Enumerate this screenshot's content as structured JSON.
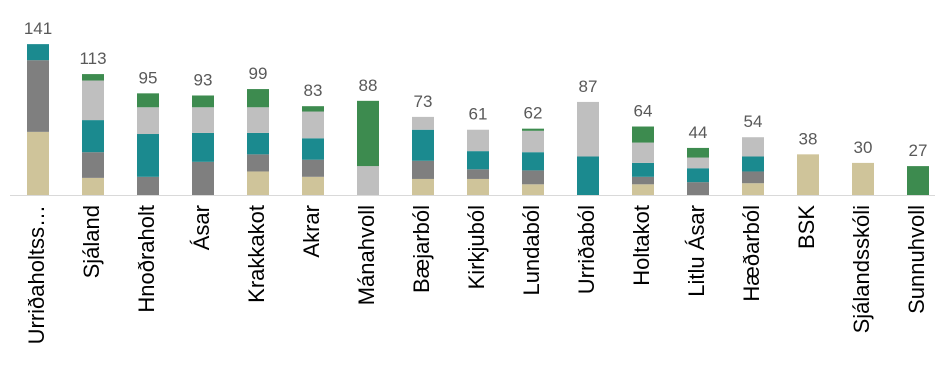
{
  "chart_data": {
    "type": "stacked-bar",
    "categories": [
      "Urriðaholtss…",
      "Sjáland",
      "Hnoðraholt",
      "Ásar",
      "Krakkakot",
      "Akrar",
      "Mánahvoll",
      "Bæjarból",
      "Kirkjuból",
      "Lundaból",
      "Urriðaból",
      "Holtakot",
      "Litlu Ásar",
      "Hæðarból",
      "BSK",
      "Sjálandsskóli",
      "Sunnuhvoll"
    ],
    "series": [
      {
        "color": "#cfc49a",
        "values": [
          59,
          16,
          0,
          0,
          22,
          17,
          0,
          15,
          15,
          10,
          0,
          10,
          0,
          11,
          38,
          30,
          0
        ]
      },
      {
        "color": "#7f7f7f",
        "values": [
          67,
          24,
          17,
          31,
          16,
          16,
          0,
          17,
          9,
          13,
          0,
          7,
          12,
          11,
          0,
          0,
          0
        ]
      },
      {
        "color": "#1b8a8f",
        "values": [
          15,
          30,
          40,
          27,
          20,
          20,
          0,
          29,
          17,
          17,
          36,
          13,
          13,
          14,
          0,
          0,
          0
        ]
      },
      {
        "color": "#bfbfbf",
        "values": [
          0,
          37,
          25,
          24,
          24,
          25,
          27,
          12,
          20,
          20,
          51,
          19,
          10,
          18,
          0,
          0,
          0
        ]
      },
      {
        "color": "#3d8b4f",
        "values": [
          0,
          6,
          13,
          11,
          17,
          5,
          61,
          0,
          0,
          2,
          0,
          15,
          9,
          0,
          0,
          0,
          27
        ]
      }
    ],
    "totals": [
      141,
      113,
      95,
      93,
      99,
      83,
      88,
      73,
      61,
      62,
      87,
      64,
      44,
      54,
      38,
      30,
      27
    ]
  }
}
